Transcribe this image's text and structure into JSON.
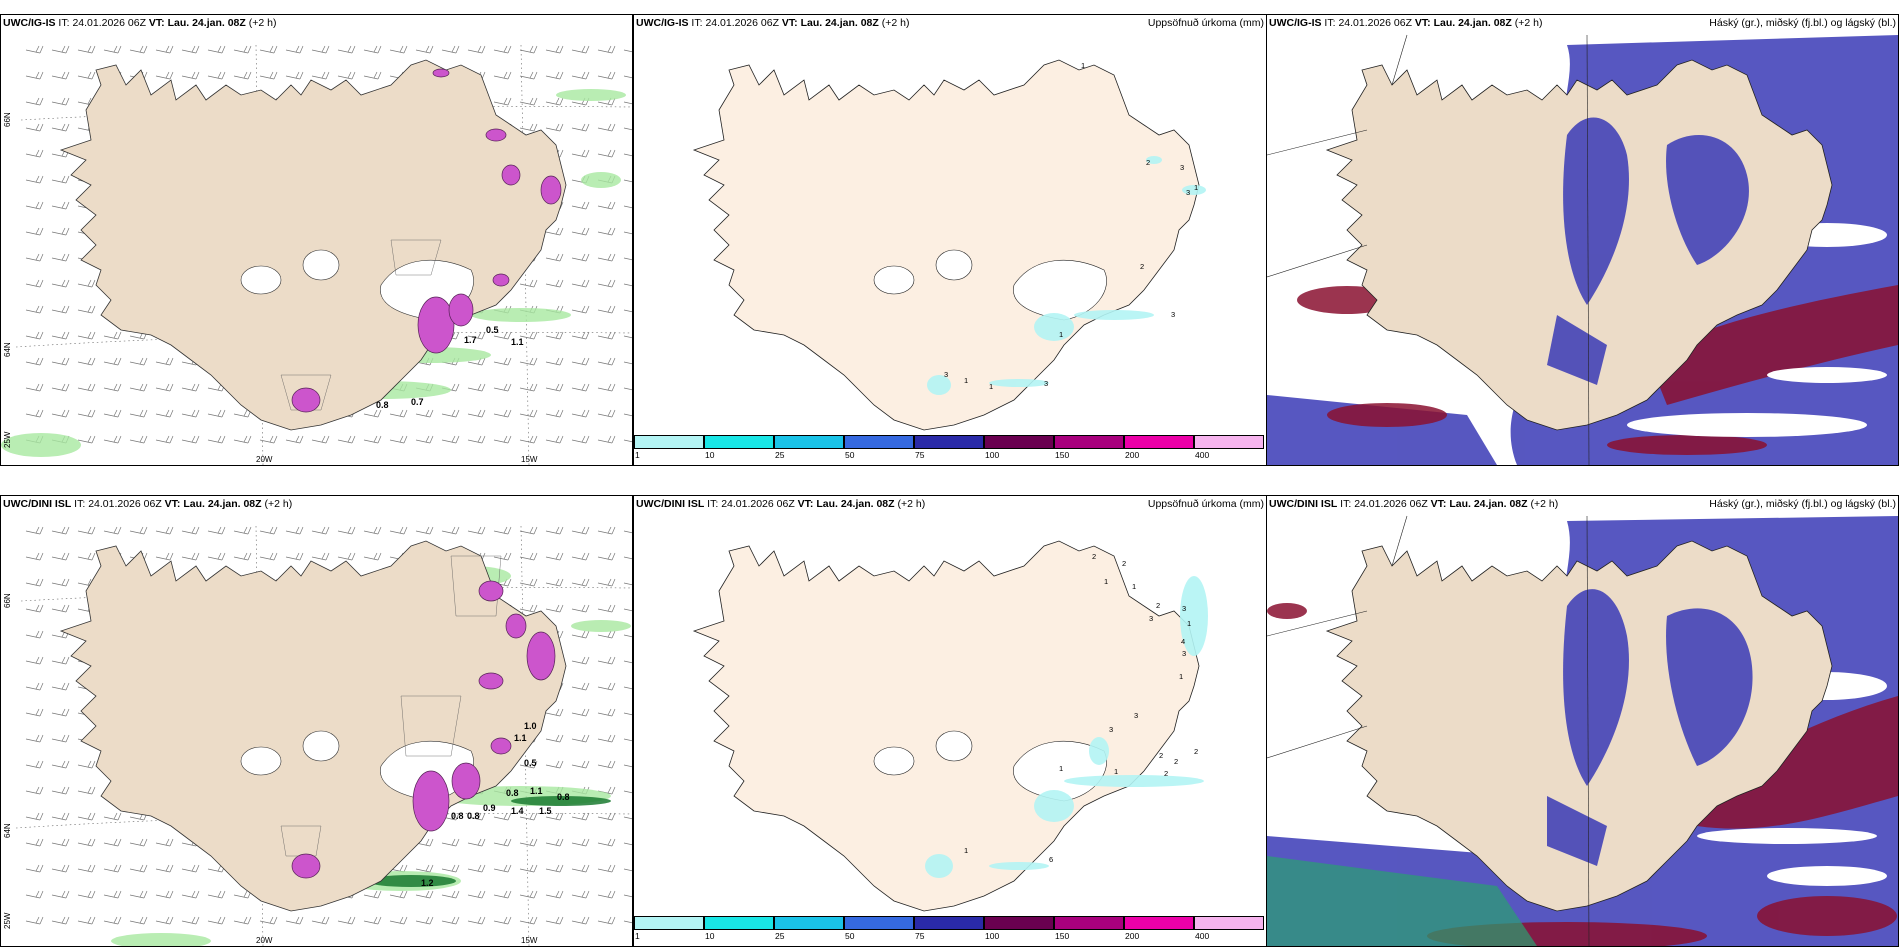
{
  "rows": [
    {
      "model": "UWC/IG-IS",
      "it_label": "IT:",
      "it_value": "24.01.2026 06Z",
      "vt_label": "VT:",
      "vt_value": "Lau. 24.jan. 08Z",
      "lead": "(+2 h)",
      "precip_title": "Uppsöfnuð úrkoma (mm)",
      "cloud_title": "Háský (gr.), miðský (fj.bl.) og lágský (bl.)",
      "wind_labels": [
        "0.5",
        "1.1",
        "1.7",
        "0.8",
        "0.7"
      ],
      "precip_labels": [
        "1",
        "2",
        "3",
        "3",
        "1",
        "2",
        "3",
        "1",
        "3",
        "1",
        "1",
        "3"
      ]
    },
    {
      "model": "UWC/DINI ISL",
      "it_label": "IT:",
      "it_value": "24.01.2026 06Z",
      "vt_label": "VT:",
      "vt_value": "Lau. 24.jan. 08Z",
      "lead": "(+2 h)",
      "precip_title": "Uppsöfnuð úrkoma (mm)",
      "cloud_title": "Háský (gr.), miðský (fj.bl.) og lágský (bl.)",
      "wind_labels": [
        "1.0",
        "1.1",
        "0.5",
        "0.8",
        "1.1",
        "0.8",
        "0.9",
        "1.4",
        "0.8",
        "0.8",
        "1.5",
        "1.2"
      ],
      "precip_labels": [
        "2",
        "2",
        "1",
        "1",
        "2",
        "3",
        "3",
        "1",
        "4",
        "3",
        "1",
        "3",
        "3",
        "2",
        "2",
        "2",
        "2",
        "1",
        "1",
        "1",
        "6"
      ]
    }
  ],
  "axes": {
    "lat_top": "66N",
    "lat_mid": "64N",
    "lon_left": "25W",
    "lon_20": "20W",
    "lon_15": "15W"
  },
  "colorbar": {
    "labels": [
      "1",
      "10",
      "25",
      "50",
      "75",
      "100",
      "150",
      "200",
      "400"
    ],
    "colors": [
      "#b3f4f4",
      "#19e6e6",
      "#1ac3e8",
      "#3569e0",
      "#2a2aa8",
      "#6a0050",
      "#a8007d",
      "#ec00a8",
      "#f6b4ee"
    ]
  },
  "colors": {
    "land": "#ecdcc8",
    "land_precip": "#fcefe2",
    "wind_barb": "#777777",
    "green_precip": "#a8e8a0",
    "mid_cloud": "#3a3ab6",
    "high_cloud": "#8a1030"
  }
}
